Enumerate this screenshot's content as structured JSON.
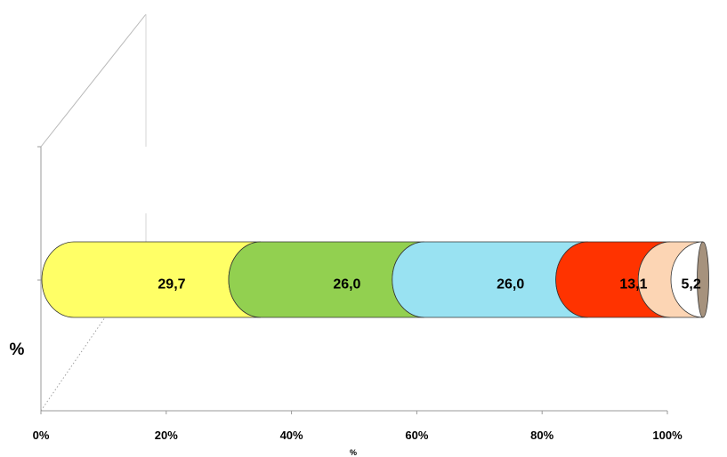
{
  "chart_data": {
    "type": "bar",
    "orientation": "horizontal",
    "stacked": "percent",
    "three_d": true,
    "categories": [
      ""
    ],
    "series": [
      {
        "values": [
          29.7
        ],
        "label": "29,7",
        "color": "#ffff66"
      },
      {
        "values": [
          26.0
        ],
        "label": "26,0",
        "color": "#92d050"
      },
      {
        "values": [
          26.0
        ],
        "label": "26,0",
        "color": "#99e2f2"
      },
      {
        "values": [
          13.1
        ],
        "label": "13,1",
        "color": "#ff3300"
      },
      {
        "values": [
          5.2
        ],
        "label": "5,2",
        "color": "#fcd5b4"
      }
    ],
    "end_cap_color": "#a6927d",
    "x_ticks": [
      "0%",
      "20%",
      "40%",
      "60%",
      "80%",
      "100%"
    ],
    "xlim": [
      0,
      100
    ],
    "xlabel": "%",
    "ylabel": "%",
    "grid": false,
    "legend": "none"
  }
}
